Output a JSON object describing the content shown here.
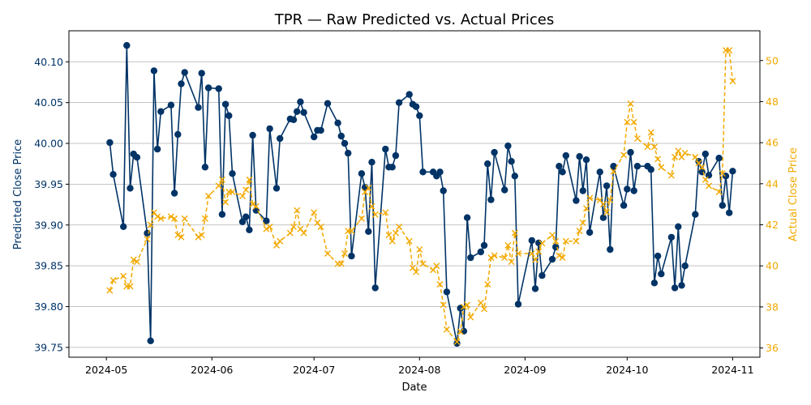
{
  "chart_data": {
    "type": "line",
    "title": "TPR — Raw Predicted vs. Actual Prices",
    "xlabel": "Date",
    "ylabel_left": "Predicted Close Price",
    "ylabel_right": "Actual Close Price",
    "x_ticks": [
      "2024-05",
      "2024-06",
      "2024-07",
      "2024-08",
      "2024-09",
      "2024-10",
      "2024-11"
    ],
    "y_left_ticks": [
      "39.75",
      "39.80",
      "39.85",
      "39.90",
      "39.95",
      "40.00",
      "40.05",
      "40.10"
    ],
    "y_right_ticks": [
      "36",
      "38",
      "40",
      "42",
      "44",
      "46",
      "48",
      "50"
    ],
    "x_range": [
      "2024-04-20",
      "2024-11-09"
    ],
    "y_left_range": [
      39.738,
      40.138
    ],
    "y_right_range": [
      35.55,
      51.45
    ],
    "grid": "horizontal",
    "colors": {
      "predicted": "#003366",
      "actual": "#f2a900"
    },
    "series": [
      {
        "role": "predicted",
        "axis": "left",
        "marker": "circle",
        "points": [
          [
            "2024-05-02",
            40.001
          ],
          [
            "2024-05-03",
            39.962
          ],
          [
            "2024-05-06",
            39.898
          ],
          [
            "2024-05-07",
            40.12
          ],
          [
            "2024-05-08",
            39.945
          ],
          [
            "2024-05-09",
            39.987
          ],
          [
            "2024-05-10",
            39.983
          ],
          [
            "2024-05-13",
            39.89
          ],
          [
            "2024-05-14",
            39.758
          ],
          [
            "2024-05-15",
            40.089
          ],
          [
            "2024-05-16",
            39.993
          ],
          [
            "2024-05-17",
            40.039
          ],
          [
            "2024-05-20",
            40.047
          ],
          [
            "2024-05-21",
            39.939
          ],
          [
            "2024-05-22",
            40.011
          ],
          [
            "2024-05-23",
            40.073
          ],
          [
            "2024-05-24",
            40.087
          ],
          [
            "2024-05-28",
            40.044
          ],
          [
            "2024-05-29",
            40.086
          ],
          [
            "2024-05-30",
            39.971
          ],
          [
            "2024-05-31",
            40.068
          ],
          [
            "2024-06-03",
            40.067
          ],
          [
            "2024-06-04",
            39.913
          ],
          [
            "2024-06-05",
            40.048
          ],
          [
            "2024-06-06",
            40.034
          ],
          [
            "2024-06-07",
            39.963
          ],
          [
            "2024-06-10",
            39.904
          ],
          [
            "2024-06-11",
            39.91
          ],
          [
            "2024-06-12",
            39.894
          ],
          [
            "2024-06-13",
            40.01
          ],
          [
            "2024-06-14",
            39.918
          ],
          [
            "2024-06-17",
            39.905
          ],
          [
            "2024-06-18",
            40.018
          ],
          [
            "2024-06-20",
            39.945
          ],
          [
            "2024-06-21",
            40.006
          ],
          [
            "2024-06-24",
            40.03
          ],
          [
            "2024-06-25",
            40.029
          ],
          [
            "2024-06-26",
            40.039
          ],
          [
            "2024-06-27",
            40.051
          ],
          [
            "2024-06-28",
            40.038
          ],
          [
            "2024-07-01",
            40.008
          ],
          [
            "2024-07-02",
            40.016
          ],
          [
            "2024-07-03",
            40.016
          ],
          [
            "2024-07-05",
            40.049
          ],
          [
            "2024-07-08",
            40.025
          ],
          [
            "2024-07-09",
            40.009
          ],
          [
            "2024-07-10",
            40.0
          ],
          [
            "2024-07-11",
            39.988
          ],
          [
            "2024-07-12",
            39.862
          ],
          [
            "2024-07-15",
            39.963
          ],
          [
            "2024-07-16",
            39.946
          ],
          [
            "2024-07-17",
            39.892
          ],
          [
            "2024-07-18",
            39.977
          ],
          [
            "2024-07-19",
            39.823
          ],
          [
            "2024-07-22",
            39.993
          ],
          [
            "2024-07-23",
            39.971
          ],
          [
            "2024-07-24",
            39.971
          ],
          [
            "2024-07-25",
            39.985
          ],
          [
            "2024-07-26",
            40.05
          ],
          [
            "2024-07-29",
            40.06
          ],
          [
            "2024-07-30",
            40.048
          ],
          [
            "2024-07-31",
            40.045
          ],
          [
            "2024-08-01",
            40.034
          ],
          [
            "2024-08-02",
            39.965
          ],
          [
            "2024-08-05",
            39.965
          ],
          [
            "2024-08-06",
            39.96
          ],
          [
            "2024-08-07",
            39.965
          ],
          [
            "2024-08-08",
            39.942
          ],
          [
            "2024-08-09",
            39.818
          ],
          [
            "2024-08-12",
            39.755
          ],
          [
            "2024-08-13",
            39.798
          ],
          [
            "2024-08-14",
            39.77
          ],
          [
            "2024-08-15",
            39.909
          ],
          [
            "2024-08-16",
            39.86
          ],
          [
            "2024-08-19",
            39.867
          ],
          [
            "2024-08-20",
            39.875
          ],
          [
            "2024-08-21",
            39.975
          ],
          [
            "2024-08-22",
            39.931
          ],
          [
            "2024-08-23",
            39.989
          ],
          [
            "2024-08-26",
            39.943
          ],
          [
            "2024-08-27",
            39.997
          ],
          [
            "2024-08-28",
            39.978
          ],
          [
            "2024-08-29",
            39.96
          ],
          [
            "2024-08-30",
            39.803
          ],
          [
            "2024-09-03",
            39.881
          ],
          [
            "2024-09-04",
            39.822
          ],
          [
            "2024-09-05",
            39.878
          ],
          [
            "2024-09-06",
            39.838
          ],
          [
            "2024-09-09",
            39.858
          ],
          [
            "2024-09-10",
            39.873
          ],
          [
            "2024-09-11",
            39.972
          ],
          [
            "2024-09-12",
            39.965
          ],
          [
            "2024-09-13",
            39.985
          ],
          [
            "2024-09-16",
            39.93
          ],
          [
            "2024-09-17",
            39.984
          ],
          [
            "2024-09-18",
            39.942
          ],
          [
            "2024-09-19",
            39.98
          ],
          [
            "2024-09-20",
            39.891
          ],
          [
            "2024-09-23",
            39.965
          ],
          [
            "2024-09-24",
            39.909
          ],
          [
            "2024-09-25",
            39.948
          ],
          [
            "2024-09-26",
            39.87
          ],
          [
            "2024-09-27",
            39.972
          ],
          [
            "2024-09-30",
            39.924
          ],
          [
            "2024-10-01",
            39.944
          ],
          [
            "2024-10-02",
            39.989
          ],
          [
            "2024-10-03",
            39.942
          ],
          [
            "2024-10-04",
            39.972
          ],
          [
            "2024-10-07",
            39.972
          ],
          [
            "2024-10-08",
            39.968
          ],
          [
            "2024-10-09",
            39.829
          ],
          [
            "2024-10-10",
            39.862
          ],
          [
            "2024-10-11",
            39.84
          ],
          [
            "2024-10-14",
            39.885
          ],
          [
            "2024-10-15",
            39.823
          ],
          [
            "2024-10-16",
            39.898
          ],
          [
            "2024-10-17",
            39.826
          ],
          [
            "2024-10-18",
            39.85
          ],
          [
            "2024-10-21",
            39.913
          ],
          [
            "2024-10-22",
            39.978
          ],
          [
            "2024-10-23",
            39.965
          ],
          [
            "2024-10-24",
            39.987
          ],
          [
            "2024-10-25",
            39.961
          ],
          [
            "2024-10-28",
            39.982
          ],
          [
            "2024-10-29",
            39.924
          ],
          [
            "2024-10-30",
            39.96
          ],
          [
            "2024-10-31",
            39.915
          ],
          [
            "2024-11-01",
            39.966
          ]
        ]
      },
      {
        "role": "actual",
        "axis": "right",
        "marker": "x",
        "points": [
          [
            "2024-05-02",
            38.8
          ],
          [
            "2024-05-03",
            39.3
          ],
          [
            "2024-05-06",
            39.5
          ],
          [
            "2024-05-07",
            39.0
          ],
          [
            "2024-05-08",
            39.0
          ],
          [
            "2024-05-09",
            40.3
          ],
          [
            "2024-05-10",
            40.2
          ],
          [
            "2024-05-13",
            41.3
          ],
          [
            "2024-05-14",
            42.0
          ],
          [
            "2024-05-15",
            42.6
          ],
          [
            "2024-05-16",
            42.4
          ],
          [
            "2024-05-17",
            42.3
          ],
          [
            "2024-05-20",
            42.4
          ],
          [
            "2024-05-21",
            42.3
          ],
          [
            "2024-05-22",
            41.5
          ],
          [
            "2024-05-23",
            41.4
          ],
          [
            "2024-05-24",
            42.3
          ],
          [
            "2024-05-28",
            41.4
          ],
          [
            "2024-05-29",
            41.5
          ],
          [
            "2024-05-30",
            42.3
          ],
          [
            "2024-05-31",
            43.4
          ],
          [
            "2024-06-03",
            43.9
          ],
          [
            "2024-06-04",
            44.2
          ],
          [
            "2024-06-05",
            43.1
          ],
          [
            "2024-06-06",
            43.6
          ],
          [
            "2024-06-07",
            43.6
          ],
          [
            "2024-06-10",
            43.4
          ],
          [
            "2024-06-11",
            43.7
          ],
          [
            "2024-06-12",
            44.2
          ],
          [
            "2024-06-13",
            43.0
          ],
          [
            "2024-06-14",
            42.9
          ],
          [
            "2024-06-17",
            41.8
          ],
          [
            "2024-06-18",
            41.9
          ],
          [
            "2024-06-20",
            41.0
          ],
          [
            "2024-06-21",
            41.2
          ],
          [
            "2024-06-24",
            41.6
          ],
          [
            "2024-06-25",
            41.9
          ],
          [
            "2024-06-26",
            42.7
          ],
          [
            "2024-06-27",
            41.8
          ],
          [
            "2024-06-28",
            41.6
          ],
          [
            "2024-07-01",
            42.6
          ],
          [
            "2024-07-02",
            42.1
          ],
          [
            "2024-07-03",
            41.9
          ],
          [
            "2024-07-05",
            40.6
          ],
          [
            "2024-07-08",
            40.1
          ],
          [
            "2024-07-09",
            40.1
          ],
          [
            "2024-07-10",
            40.6
          ],
          [
            "2024-07-11",
            41.7
          ],
          [
            "2024-07-12",
            41.7
          ],
          [
            "2024-07-15",
            42.3
          ],
          [
            "2024-07-16",
            43.6
          ],
          [
            "2024-07-17",
            43.8
          ],
          [
            "2024-07-18",
            42.9
          ],
          [
            "2024-07-19",
            42.5
          ],
          [
            "2024-07-22",
            42.6
          ],
          [
            "2024-07-23",
            41.5
          ],
          [
            "2024-07-24",
            41.2
          ],
          [
            "2024-07-25",
            41.6
          ],
          [
            "2024-07-26",
            41.9
          ],
          [
            "2024-07-29",
            41.2
          ],
          [
            "2024-07-30",
            39.9
          ],
          [
            "2024-07-31",
            39.7
          ],
          [
            "2024-08-01",
            40.8
          ],
          [
            "2024-08-02",
            40.1
          ],
          [
            "2024-08-05",
            39.8
          ],
          [
            "2024-08-06",
            40.0
          ],
          [
            "2024-08-07",
            39.1
          ],
          [
            "2024-08-08",
            38.1
          ],
          [
            "2024-08-09",
            36.9
          ],
          [
            "2024-08-12",
            36.3
          ],
          [
            "2024-08-13",
            36.8
          ],
          [
            "2024-08-14",
            38.0
          ],
          [
            "2024-08-15",
            38.1
          ],
          [
            "2024-08-16",
            37.5
          ],
          [
            "2024-08-19",
            38.2
          ],
          [
            "2024-08-20",
            37.9
          ],
          [
            "2024-08-21",
            39.1
          ],
          [
            "2024-08-22",
            40.4
          ],
          [
            "2024-08-23",
            40.5
          ],
          [
            "2024-08-26",
            40.4
          ],
          [
            "2024-08-27",
            41.0
          ],
          [
            "2024-08-28",
            40.2
          ],
          [
            "2024-08-29",
            41.6
          ],
          [
            "2024-08-30",
            40.6
          ],
          [
            "2024-09-03",
            40.6
          ],
          [
            "2024-09-04",
            40.3
          ],
          [
            "2024-09-05",
            40.7
          ],
          [
            "2024-09-06",
            41.1
          ],
          [
            "2024-09-09",
            41.5
          ],
          [
            "2024-09-10",
            41.2
          ],
          [
            "2024-09-11",
            40.5
          ],
          [
            "2024-09-12",
            40.4
          ],
          [
            "2024-09-13",
            41.2
          ],
          [
            "2024-09-16",
            41.2
          ],
          [
            "2024-09-17",
            41.7
          ],
          [
            "2024-09-18",
            42.1
          ],
          [
            "2024-09-19",
            42.8
          ],
          [
            "2024-09-20",
            43.3
          ],
          [
            "2024-09-23",
            43.2
          ],
          [
            "2024-09-24",
            43.0
          ],
          [
            "2024-09-25",
            42.6
          ],
          [
            "2024-09-26",
            43.2
          ],
          [
            "2024-09-27",
            44.6
          ],
          [
            "2024-09-30",
            45.4
          ],
          [
            "2024-10-01",
            47.0
          ],
          [
            "2024-10-02",
            47.9
          ],
          [
            "2024-10-03",
            47.0
          ],
          [
            "2024-10-04",
            46.2
          ],
          [
            "2024-10-07",
            45.8
          ],
          [
            "2024-10-08",
            46.5
          ],
          [
            "2024-10-09",
            45.8
          ],
          [
            "2024-10-10",
            45.2
          ],
          [
            "2024-10-11",
            44.8
          ],
          [
            "2024-10-14",
            44.4
          ],
          [
            "2024-10-15",
            45.3
          ],
          [
            "2024-10-16",
            45.6
          ],
          [
            "2024-10-17",
            45.3
          ],
          [
            "2024-10-18",
            45.5
          ],
          [
            "2024-10-21",
            45.3
          ],
          [
            "2024-10-22",
            45.0
          ],
          [
            "2024-10-23",
            44.8
          ],
          [
            "2024-10-24",
            44.2
          ],
          [
            "2024-10-25",
            43.9
          ],
          [
            "2024-10-28",
            43.6
          ],
          [
            "2024-10-29",
            44.5
          ],
          [
            "2024-10-30",
            50.5
          ],
          [
            "2024-10-31",
            50.5
          ],
          [
            "2024-11-01",
            49.0
          ]
        ]
      }
    ]
  }
}
